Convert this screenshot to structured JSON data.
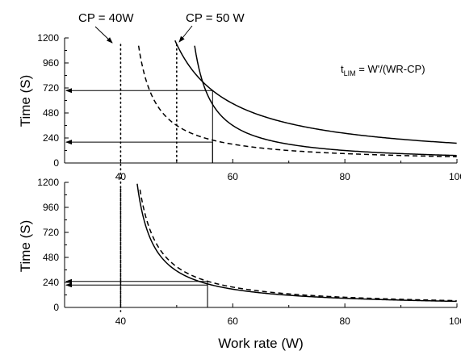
{
  "chart_data": [
    {
      "type": "line",
      "panel": "top",
      "xlim": [
        30,
        100
      ],
      "ylim": [
        0,
        1200
      ],
      "xticks": [
        "40",
        "60",
        "80",
        "100"
      ],
      "yticks": [
        "0",
        "240",
        "480",
        "720",
        "960",
        "1200"
      ],
      "ylabel": "Time (S)",
      "annotations": {
        "cp40": "CP = 40W",
        "cp50": "CP = 50 W",
        "formula_main": "t",
        "formula_sub": "LIM",
        "formula_rest": " = W'/(WR-CP)"
      },
      "vlines": [
        40,
        50
      ],
      "series": [
        {
          "cp": 40,
          "wprime": 11400,
          "style": "solid",
          "x": [
            45,
            50,
            56.4,
            60,
            70,
            80,
            90,
            100
          ],
          "values": [
            2280,
            1140,
            695,
            570,
            380,
            285,
            228,
            190
          ]
        },
        {
          "cp": 50,
          "wprime": 3600,
          "style": "solid",
          "x": [
            52,
            56.4,
            60,
            70,
            80,
            90,
            100
          ],
          "values": [
            1800,
            563,
            360,
            180,
            120,
            90,
            72
          ]
        },
        {
          "cp": 40,
          "wprime": 3600,
          "style": "dashed",
          "x": [
            43,
            50,
            60,
            70,
            80,
            90,
            100
          ],
          "values": [
            1200,
            360,
            180,
            120,
            90,
            72,
            60
          ]
        }
      ],
      "guides": [
        {
          "x": 56.4,
          "y": 695
        },
        {
          "x": 56.4,
          "y": 200
        }
      ]
    },
    {
      "type": "line",
      "panel": "bottom",
      "xlim": [
        30,
        100
      ],
      "ylim": [
        0,
        1200
      ],
      "xticks": [
        "40",
        "60",
        "80",
        "100"
      ],
      "yticks": [
        "0",
        "240",
        "480",
        "720",
        "960",
        "1200"
      ],
      "xlabel": "Work rate (W)",
      "ylabel": "Time (S)",
      "vlines": [
        40
      ],
      "series": [
        {
          "cp": 40,
          "wprime": 3500,
          "style": "solid",
          "x": [
            44,
            50,
            55.5,
            60,
            70,
            80,
            90,
            100
          ],
          "values": [
            875,
            350,
            226,
            175,
            117,
            88,
            70,
            58
          ]
        },
        {
          "cp": 40,
          "wprime": 3900,
          "style": "dashed",
          "x": [
            44,
            50,
            55.5,
            60,
            70,
            80,
            90,
            100
          ],
          "values": [
            975,
            390,
            252,
            195,
            130,
            98,
            78,
            65
          ]
        }
      ],
      "guides": [
        {
          "x": 55.5,
          "y": 250
        },
        {
          "x": 55.5,
          "y": 215
        }
      ]
    }
  ]
}
